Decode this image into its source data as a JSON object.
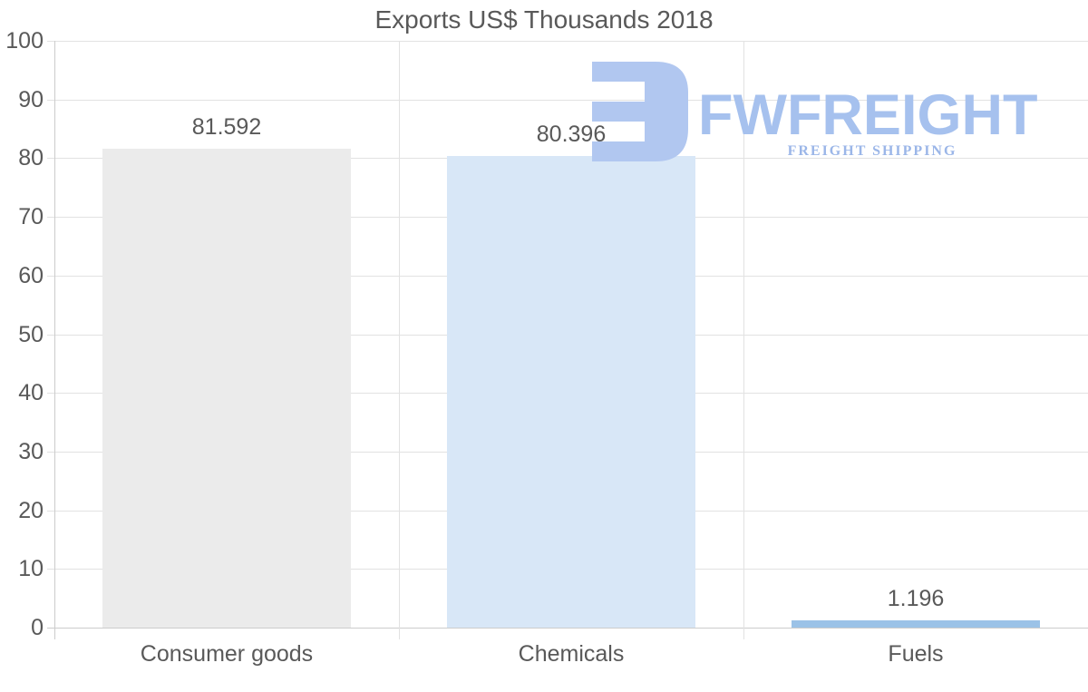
{
  "watermark": {
    "brand": "FWFREIGHT",
    "tagline": "FREIGHT SHIPPING",
    "logo_icon": "fwfreight-logo-mark",
    "mark_color": "#b1c7f0",
    "brand_color": "#a6c1ee",
    "tagline_color": "#9bb6e8"
  },
  "chart_data": {
    "type": "bar",
    "title": "Exports US$ Thousands 2018",
    "categories": [
      "Consumer goods",
      "Chemicals",
      "Fuels"
    ],
    "values": [
      81.592,
      80.396,
      1.196
    ],
    "value_labels": [
      "81.592",
      "80.396",
      "1.196"
    ],
    "bar_colors": [
      "#ebebeb",
      "#d8e7f7",
      "#9bc2e7"
    ],
    "xlabel": "",
    "ylabel": "",
    "ylim": [
      0,
      100
    ],
    "yticks": [
      0,
      10,
      20,
      30,
      40,
      50,
      60,
      70,
      80,
      90,
      100
    ],
    "grid": "horizontal gridlines + category separator verticals",
    "legend": "none",
    "text_color": "#595959",
    "grid_color": "#e2e2e2",
    "axis_color": "#cccccc"
  }
}
